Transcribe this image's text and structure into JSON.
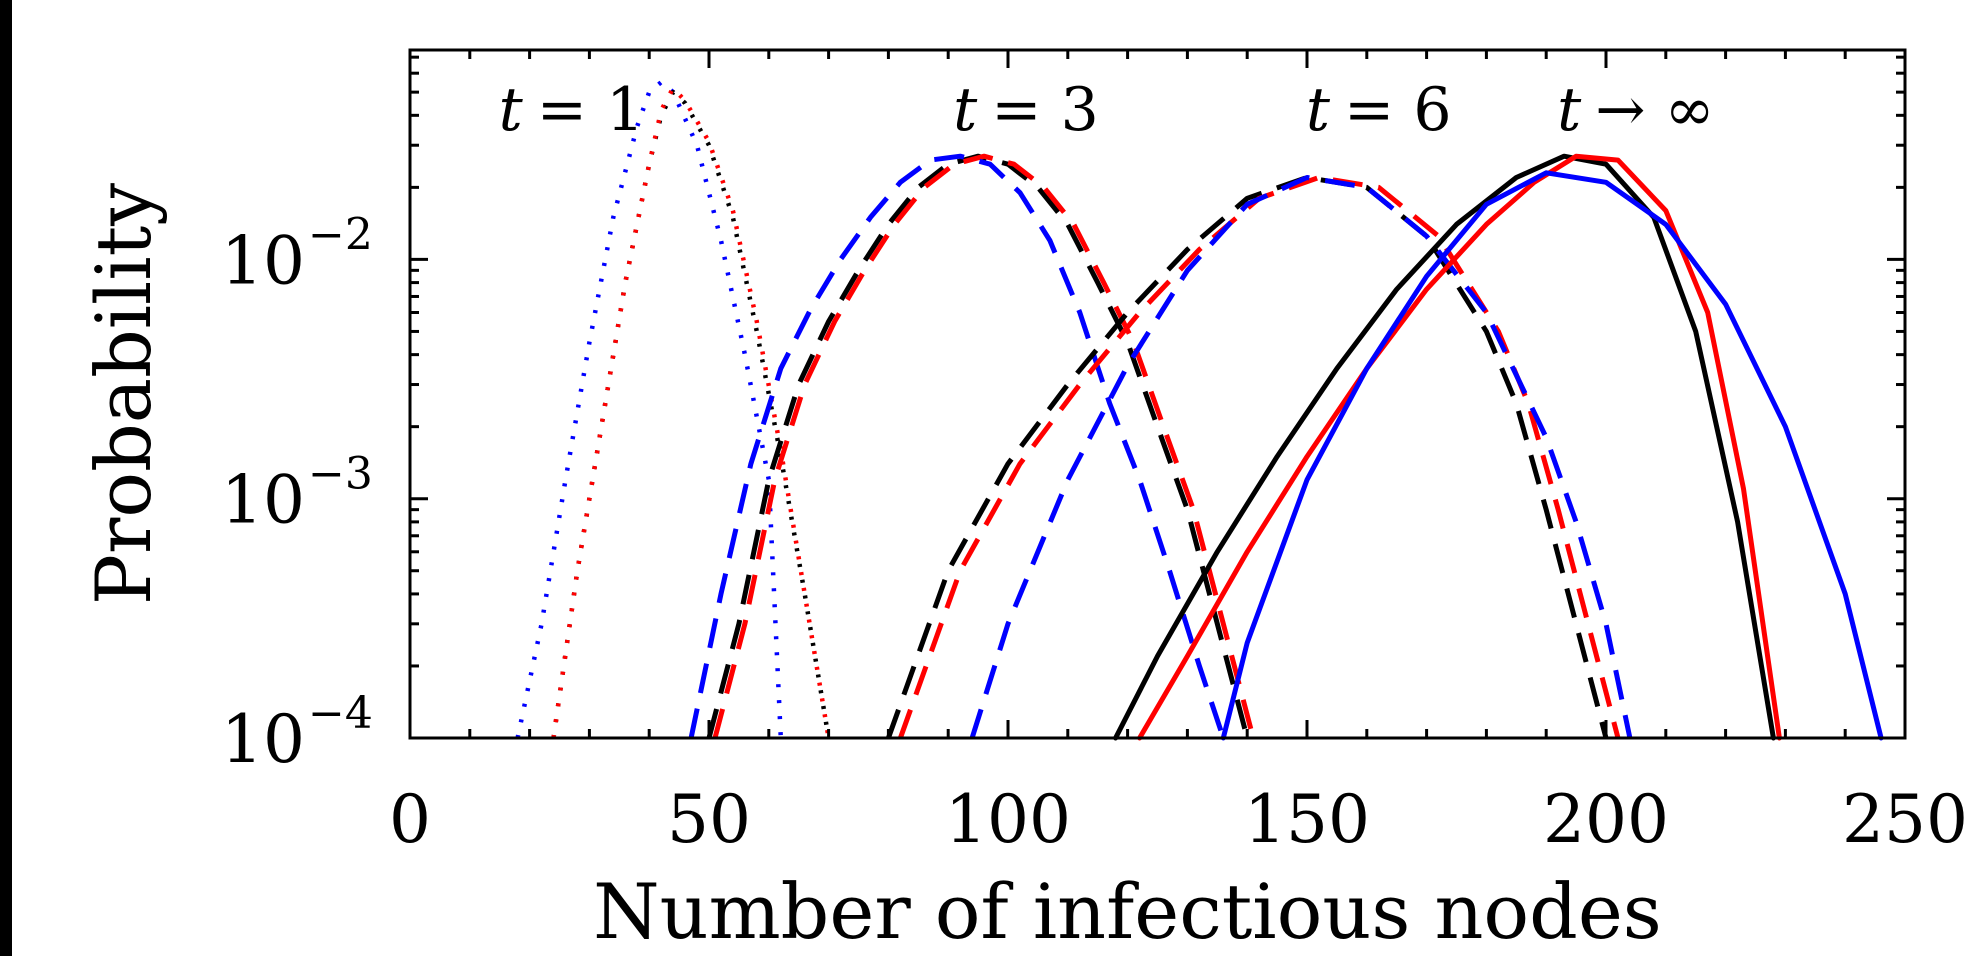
{
  "chart_data": {
    "type": "line",
    "xlabel": "Number of infectious nodes",
    "ylabel": "Probability",
    "xlim": [
      0,
      250
    ],
    "ylim": [
      0.0001,
      0.075
    ],
    "yscale": "log",
    "x_ticks": [
      "0",
      "50",
      "100",
      "150",
      "200",
      "250"
    ],
    "y_ticks": [
      {
        "base": "10",
        "exp": "−4",
        "value": 0.0001
      },
      {
        "base": "10",
        "exp": "−3",
        "value": 0.001
      },
      {
        "base": "10",
        "exp": "−2",
        "value": 0.01
      }
    ],
    "annotations": [
      {
        "var": "t",
        "rel": "= 1",
        "x": 27
      },
      {
        "var": "t",
        "rel": "= 3",
        "x": 103
      },
      {
        "var": "t",
        "rel": "= 6",
        "x": 162
      },
      {
        "var": "t",
        "rel": "→ ∞",
        "x": 205
      }
    ],
    "colors": {
      "black": "#000000",
      "red": "#ff0000",
      "blue": "#0000ff"
    },
    "series": [
      {
        "group": "t = 1",
        "style": "dotted",
        "color": "blue",
        "x": [
          18,
          22,
          26,
          30,
          34,
          38,
          40,
          42,
          44,
          48,
          52,
          56,
          60,
          62
        ],
        "y": [
          0.0001,
          0.0003,
          0.0012,
          0.0045,
          0.015,
          0.036,
          0.05,
          0.055,
          0.05,
          0.03,
          0.012,
          0.004,
          0.0012,
          0.0001
        ]
      },
      {
        "group": "t = 1",
        "style": "dotted",
        "color": "black",
        "x": [
          24,
          28,
          32,
          36,
          40,
          42,
          44,
          46,
          50,
          54,
          58,
          62,
          66,
          70
        ],
        "y": [
          0.0001,
          0.0005,
          0.002,
          0.008,
          0.025,
          0.04,
          0.05,
          0.045,
          0.03,
          0.015,
          0.005,
          0.0015,
          0.0004,
          0.0001
        ]
      },
      {
        "group": "t = 1",
        "style": "dotted",
        "color": "red",
        "x": [
          24,
          28,
          32,
          36,
          40,
          42,
          44,
          46,
          50,
          54,
          58,
          62,
          66,
          70
        ],
        "y": [
          0.0001,
          0.0005,
          0.002,
          0.008,
          0.025,
          0.042,
          0.052,
          0.046,
          0.031,
          0.016,
          0.0055,
          0.0016,
          0.0004,
          0.0001
        ]
      },
      {
        "group": "t = 3",
        "style": "dashed",
        "color": "black",
        "x": [
          50,
          55,
          60,
          65,
          70,
          75,
          80,
          85,
          90,
          95,
          100,
          105,
          110,
          115,
          120,
          125,
          130,
          135,
          140
        ],
        "y": [
          0.0001,
          0.0003,
          0.0012,
          0.003,
          0.0055,
          0.009,
          0.014,
          0.02,
          0.025,
          0.027,
          0.025,
          0.02,
          0.014,
          0.008,
          0.0045,
          0.002,
          0.0009,
          0.0003,
          0.0001
        ]
      },
      {
        "group": "t = 3",
        "style": "dashed",
        "color": "red",
        "x": [
          51,
          56,
          61,
          66,
          71,
          76,
          81,
          86,
          91,
          96,
          101,
          106,
          111,
          116,
          121,
          126,
          131,
          136,
          141
        ],
        "y": [
          0.0001,
          0.0003,
          0.0012,
          0.003,
          0.0055,
          0.009,
          0.014,
          0.02,
          0.025,
          0.027,
          0.025,
          0.02,
          0.014,
          0.008,
          0.0045,
          0.002,
          0.0009,
          0.0003,
          0.0001
        ]
      },
      {
        "group": "t = 3",
        "style": "dashed",
        "color": "blue",
        "x": [
          47,
          52,
          57,
          62,
          67,
          72,
          77,
          82,
          87,
          92,
          97,
          102,
          107,
          112,
          117,
          122,
          127,
          132,
          136
        ],
        "y": [
          0.0001,
          0.0004,
          0.0014,
          0.0035,
          0.0062,
          0.01,
          0.015,
          0.021,
          0.026,
          0.027,
          0.025,
          0.019,
          0.012,
          0.006,
          0.0025,
          0.0012,
          0.0005,
          0.0002,
          0.0001
        ]
      },
      {
        "group": "t = 6",
        "style": "dashed",
        "color": "black",
        "x": [
          80,
          90,
          100,
          110,
          120,
          130,
          140,
          150,
          160,
          170,
          180,
          185,
          190,
          195,
          200
        ],
        "y": [
          0.0001,
          0.0005,
          0.0014,
          0.003,
          0.006,
          0.011,
          0.018,
          0.022,
          0.02,
          0.0125,
          0.005,
          0.0025,
          0.0009,
          0.0003,
          0.0001
        ]
      },
      {
        "group": "t = 6",
        "style": "dashed",
        "color": "red",
        "x": [
          82,
          92,
          102,
          112,
          122,
          132,
          142,
          152,
          162,
          172,
          182,
          187,
          192,
          197,
          202
        ],
        "y": [
          0.0001,
          0.0005,
          0.0014,
          0.003,
          0.006,
          0.011,
          0.018,
          0.022,
          0.02,
          0.0125,
          0.005,
          0.0025,
          0.0009,
          0.0003,
          0.0001
        ]
      },
      {
        "group": "t = 6",
        "style": "dashed",
        "color": "blue",
        "x": [
          94,
          100,
          110,
          120,
          130,
          140,
          150,
          160,
          170,
          180,
          190,
          195,
          200,
          204
        ],
        "y": [
          0.0001,
          0.0003,
          0.0012,
          0.0036,
          0.009,
          0.017,
          0.022,
          0.02,
          0.0125,
          0.006,
          0.0018,
          0.0008,
          0.0003,
          0.0001
        ]
      },
      {
        "group": "t → ∞",
        "style": "solid",
        "color": "black",
        "x": [
          118,
          125,
          135,
          145,
          155,
          165,
          175,
          185,
          193,
          200,
          208,
          215,
          222,
          228
        ],
        "y": [
          0.0001,
          0.00022,
          0.0006,
          0.0015,
          0.0035,
          0.0075,
          0.014,
          0.022,
          0.027,
          0.025,
          0.015,
          0.005,
          0.0008,
          0.0001
        ]
      },
      {
        "group": "t → ∞",
        "style": "solid",
        "color": "red",
        "x": [
          122,
          130,
          140,
          150,
          160,
          170,
          180,
          188,
          195,
          202,
          210,
          217,
          223,
          229
        ],
        "y": [
          0.0001,
          0.00022,
          0.0006,
          0.0015,
          0.0035,
          0.0075,
          0.014,
          0.021,
          0.027,
          0.026,
          0.016,
          0.006,
          0.0011,
          0.0001
        ]
      },
      {
        "group": "t → ∞",
        "style": "solid",
        "color": "blue",
        "x": [
          136,
          140,
          150,
          160,
          170,
          180,
          190,
          200,
          210,
          220,
          230,
          240,
          246
        ],
        "y": [
          0.0001,
          0.00025,
          0.0012,
          0.0035,
          0.0085,
          0.017,
          0.023,
          0.021,
          0.014,
          0.0065,
          0.002,
          0.0004,
          0.0001
        ]
      }
    ]
  }
}
